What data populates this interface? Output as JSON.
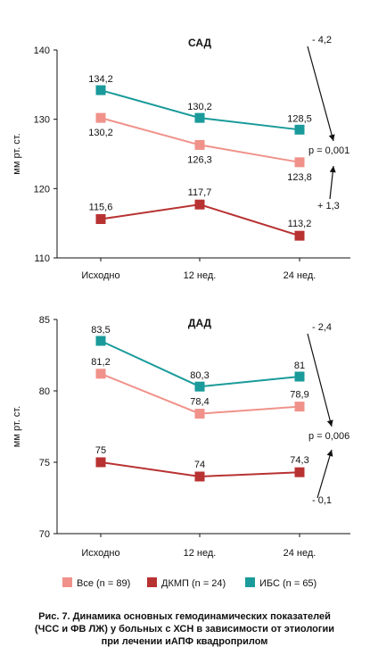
{
  "chart_data": [
    {
      "type": "line",
      "title": "САД",
      "ylabel": "мм рт. ст.",
      "ylim": [
        110,
        140
      ],
      "yticks": [
        110,
        120,
        130,
        140
      ],
      "categories": [
        "Исходно",
        "12 нед.",
        "24 нед."
      ],
      "series": [
        {
          "name": "ИБС (n = 65)",
          "key": "ibs",
          "color": "#1a9a9a",
          "values": [
            134.2,
            130.2,
            128.5
          ],
          "labels": [
            "134,2",
            "130,2",
            "128,5"
          ]
        },
        {
          "name": "Все (n = 89)",
          "key": "all",
          "color": "#f0928a",
          "values": [
            130.2,
            126.3,
            123.8
          ],
          "labels": [
            "130,2",
            "126,3",
            "123,8"
          ]
        },
        {
          "name": "ДКМП (n = 24)",
          "key": "dkmp",
          "color": "#b83232",
          "values": [
            115.6,
            117.7,
            113.2
          ],
          "labels": [
            "115,6",
            "117,7",
            "113,2"
          ]
        }
      ],
      "annotations": {
        "top": "- 4,2",
        "p": "p = 0,001",
        "bottom": "+ 1,3"
      }
    },
    {
      "type": "line",
      "title": "ДАД",
      "ylabel": "мм рт. ст.",
      "ylim": [
        70,
        85
      ],
      "yticks": [
        70,
        75,
        80,
        85
      ],
      "categories": [
        "Исходно",
        "12 нед.",
        "24 нед."
      ],
      "series": [
        {
          "name": "ИБС (n = 65)",
          "key": "ibs",
          "color": "#1a9a9a",
          "values": [
            83.5,
            80.3,
            81
          ],
          "labels": [
            "83,5",
            "80,3",
            "81"
          ]
        },
        {
          "name": "Все (n = 89)",
          "key": "all",
          "color": "#f0928a",
          "values": [
            81.2,
            78.4,
            78.9
          ],
          "labels": [
            "81,2",
            "78,4",
            "78,9"
          ]
        },
        {
          "name": "ДКМП (n = 24)",
          "key": "dkmp",
          "color": "#b83232",
          "values": [
            75,
            74,
            74.3
          ],
          "labels": [
            "75",
            "74",
            "74,3"
          ]
        }
      ],
      "annotations": {
        "top": "- 2,4",
        "p": "p = 0,006",
        "bottom": "- 0,1"
      }
    }
  ],
  "legend": [
    {
      "label": "Все (n = 89)",
      "color": "#f0928a"
    },
    {
      "label": "ДКМП (n = 24)",
      "color": "#b83232"
    },
    {
      "label": "ИБС (n = 65)",
      "color": "#1a9a9a"
    }
  ],
  "caption": [
    "Рис. 7. Динамика основных гемодинамических показателей",
    "(ЧСС и ФВ ЛЖ) у больных с ХСН в зависимости от этиологии",
    "при лечении иАПФ квадроприлом"
  ]
}
